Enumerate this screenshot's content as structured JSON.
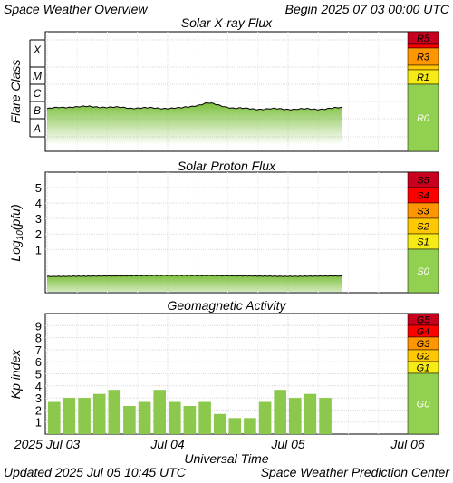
{
  "header": {
    "title": "Space Weather Overview",
    "begin": "Begin 2025 07 03 00:00 UTC"
  },
  "footer": {
    "updated": "Updated 2025 Jul 05 10:45 UTC",
    "center": "Space Weather Prediction Center"
  },
  "colors": {
    "fill": "#8cc84b",
    "g5": "#c8001e",
    "g4": "#ff0000",
    "g3": "#ff9600",
    "g2": "#ffc800",
    "g1": "#f6eb14",
    "g0": "#92d050"
  },
  "chart_data": [
    {
      "type": "area",
      "title": "Solar X-ray Flux",
      "ylabel": "Flare Class",
      "xlabel": "",
      "y_tick_labels": [
        "X",
        "M",
        "C",
        "B",
        "A"
      ],
      "scale_labels": [
        "R5",
        "R3",
        "R1",
        "R0"
      ],
      "x": [
        "Jul 03 00:00",
        "Jul 03 06:00",
        "Jul 03 12:00",
        "Jul 03 18:00",
        "Jul 04 00:00",
        "Jul 04 06:00",
        "Jul 04 10:00",
        "Jul 04 12:00",
        "Jul 04 18:00",
        "Jul 05 00:00",
        "Jul 05 06:00",
        "Jul 05 10:45"
      ],
      "values": [
        1.1,
        1.22,
        1.2,
        1.15,
        1.13,
        1.13,
        1.42,
        1.12,
        1.08,
        1.08,
        1.07,
        1.15
      ],
      "ylim": [
        -0.5,
        4.5
      ],
      "grid": true
    },
    {
      "type": "area",
      "title": "Solar Proton Flux",
      "ylabel": "Log10(pfu)",
      "xlabel": "",
      "y_tick_labels": [
        "5",
        "4",
        "3",
        "2",
        "1"
      ],
      "scale_labels": [
        "S5",
        "S4",
        "S3",
        "S2",
        "S1",
        "S0"
      ],
      "x": [
        "Jul 03 00:00",
        "Jul 03 12:00",
        "Jul 04 00:00",
        "Jul 04 12:00",
        "Jul 05 00:00",
        "Jul 05 10:45"
      ],
      "values": [
        -0.75,
        -0.72,
        -0.68,
        -0.7,
        -0.74,
        -0.72
      ],
      "ylim": [
        -1.8,
        6.0
      ],
      "grid": true
    },
    {
      "type": "bar",
      "title": "Geomagnetic Activity",
      "ylabel": "Kp index",
      "xlabel": "Universal Time",
      "y_tick_labels": [
        "9",
        "8",
        "7",
        "6",
        "5",
        "4",
        "3",
        "2",
        "1"
      ],
      "scale_labels": [
        "G5",
        "G4",
        "G3",
        "G2",
        "G1",
        "G0"
      ],
      "x_tick_labels": [
        "2025 Jul 03",
        "Jul 04",
        "Jul 05",
        "Jul 06"
      ],
      "bar_starts": [
        "Jul 03 00:00",
        "Jul 03 03:00",
        "Jul 03 06:00",
        "Jul 03 09:00",
        "Jul 03 12:00",
        "Jul 03 15:00",
        "Jul 03 18:00",
        "Jul 03 21:00",
        "Jul 04 00:00",
        "Jul 04 03:00",
        "Jul 04 06:00",
        "Jul 04 09:00",
        "Jul 04 12:00",
        "Jul 04 15:00",
        "Jul 04 18:00",
        "Jul 04 21:00",
        "Jul 05 00:00",
        "Jul 05 03:00",
        "Jul 05 06:00",
        "Jul 05 09:00"
      ],
      "values": [
        2.67,
        3.0,
        3.0,
        3.33,
        3.67,
        2.33,
        2.67,
        3.67,
        2.67,
        2.33,
        2.67,
        1.67,
        1.33,
        1.33,
        2.67,
        3.67,
        3.0,
        3.33,
        3.0,
        0
      ],
      "ylim": [
        0,
        10
      ],
      "grid": true
    }
  ]
}
